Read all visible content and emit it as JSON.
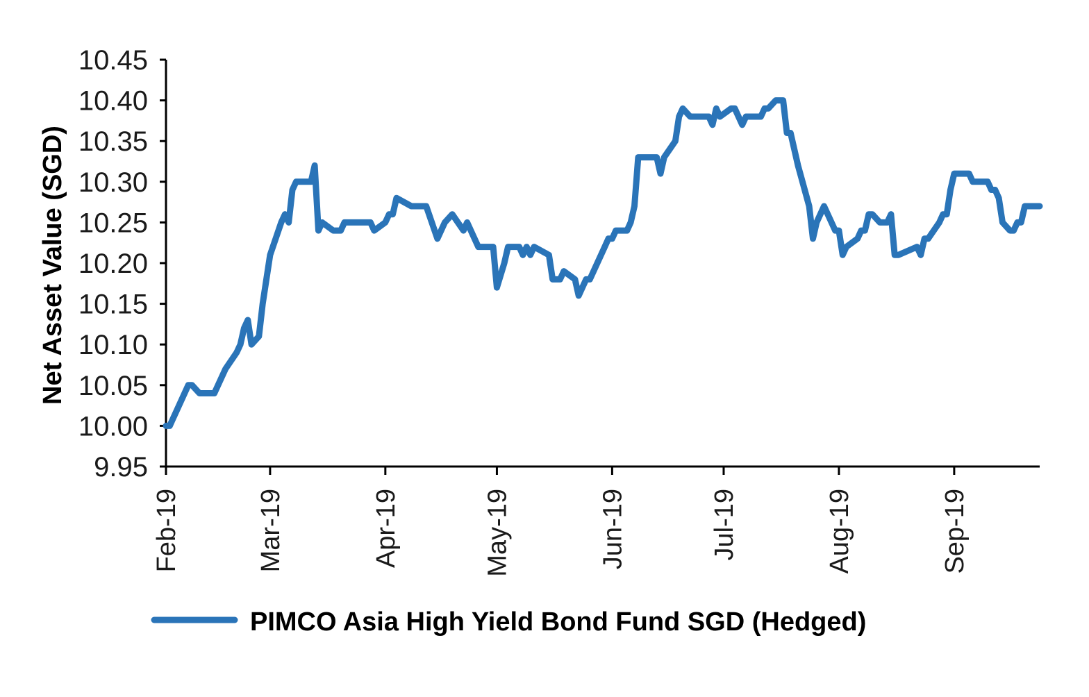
{
  "chart_data": {
    "type": "line",
    "ylabel": "Net Asset Value (SGD)",
    "ylim": [
      9.95,
      10.45
    ],
    "yticks": [
      "10.45",
      "10.40",
      "10.35",
      "10.30",
      "10.25",
      "10.20",
      "10.15",
      "10.10",
      "10.05",
      "10.00",
      "9.95"
    ],
    "xticks": [
      "Feb-19",
      "Mar-19",
      "Apr-19",
      "May-19",
      "Jun-19",
      "Jul-19",
      "Aug-19",
      "Sep-19"
    ],
    "xlim": [
      "2019-02-01",
      "2019-09-24"
    ],
    "grid": false,
    "legend_position": "bottom",
    "color": "#2a74b8",
    "series": [
      {
        "name": "PIMCO Asia High Yield Bond Fund SGD (Hedged)",
        "points": [
          [
            "2019-02-01",
            10.0
          ],
          [
            "2019-02-02",
            10.0
          ],
          [
            "2019-02-03",
            10.01
          ],
          [
            "2019-02-05",
            10.03
          ],
          [
            "2019-02-07",
            10.05
          ],
          [
            "2019-02-08",
            10.05
          ],
          [
            "2019-02-10",
            10.04
          ],
          [
            "2019-02-14",
            10.04
          ],
          [
            "2019-02-17",
            10.07
          ],
          [
            "2019-02-20",
            10.09
          ],
          [
            "2019-02-21",
            10.1
          ],
          [
            "2019-02-22",
            10.12
          ],
          [
            "2019-02-23",
            10.13
          ],
          [
            "2019-02-24",
            10.1
          ],
          [
            "2019-02-26",
            10.11
          ],
          [
            "2019-02-27",
            10.15
          ],
          [
            "2019-03-01",
            10.21
          ],
          [
            "2019-03-04",
            10.25
          ],
          [
            "2019-03-05",
            10.26
          ],
          [
            "2019-03-06",
            10.25
          ],
          [
            "2019-03-07",
            10.29
          ],
          [
            "2019-03-08",
            10.3
          ],
          [
            "2019-03-12",
            10.3
          ],
          [
            "2019-03-13",
            10.32
          ],
          [
            "2019-03-14",
            10.24
          ],
          [
            "2019-03-15",
            10.25
          ],
          [
            "2019-03-18",
            10.24
          ],
          [
            "2019-03-20",
            10.24
          ],
          [
            "2019-03-21",
            10.25
          ],
          [
            "2019-03-28",
            10.25
          ],
          [
            "2019-03-29",
            10.24
          ],
          [
            "2019-04-01",
            10.25
          ],
          [
            "2019-04-02",
            10.26
          ],
          [
            "2019-04-03",
            10.26
          ],
          [
            "2019-04-04",
            10.28
          ],
          [
            "2019-04-08",
            10.27
          ],
          [
            "2019-04-12",
            10.27
          ],
          [
            "2019-04-15",
            10.23
          ],
          [
            "2019-04-17",
            10.25
          ],
          [
            "2019-04-19",
            10.26
          ],
          [
            "2019-04-22",
            10.24
          ],
          [
            "2019-04-23",
            10.25
          ],
          [
            "2019-04-26",
            10.22
          ],
          [
            "2019-04-30",
            10.22
          ],
          [
            "2019-05-01",
            10.17
          ],
          [
            "2019-05-03",
            10.2
          ],
          [
            "2019-05-04",
            10.22
          ],
          [
            "2019-05-07",
            10.22
          ],
          [
            "2019-05-08",
            10.21
          ],
          [
            "2019-05-09",
            10.22
          ],
          [
            "2019-05-10",
            10.21
          ],
          [
            "2019-05-11",
            10.22
          ],
          [
            "2019-05-15",
            10.21
          ],
          [
            "2019-05-16",
            10.18
          ],
          [
            "2019-05-18",
            10.18
          ],
          [
            "2019-05-19",
            10.19
          ],
          [
            "2019-05-22",
            10.18
          ],
          [
            "2019-05-23",
            10.16
          ],
          [
            "2019-05-25",
            10.18
          ],
          [
            "2019-05-26",
            10.18
          ],
          [
            "2019-05-30",
            10.22
          ],
          [
            "2019-05-31",
            10.23
          ],
          [
            "2019-06-01",
            10.23
          ],
          [
            "2019-06-02",
            10.24
          ],
          [
            "2019-06-05",
            10.24
          ],
          [
            "2019-06-06",
            10.25
          ],
          [
            "2019-06-07",
            10.27
          ],
          [
            "2019-06-08",
            10.33
          ],
          [
            "2019-06-13",
            10.33
          ],
          [
            "2019-06-14",
            10.31
          ],
          [
            "2019-06-15",
            10.33
          ],
          [
            "2019-06-18",
            10.35
          ],
          [
            "2019-06-19",
            10.38
          ],
          [
            "2019-06-20",
            10.39
          ],
          [
            "2019-06-22",
            10.38
          ],
          [
            "2019-06-27",
            10.38
          ],
          [
            "2019-06-28",
            10.37
          ],
          [
            "2019-06-29",
            10.39
          ],
          [
            "2019-06-30",
            10.38
          ],
          [
            "2019-07-03",
            10.39
          ],
          [
            "2019-07-04",
            10.39
          ],
          [
            "2019-07-06",
            10.37
          ],
          [
            "2019-07-07",
            10.38
          ],
          [
            "2019-07-11",
            10.38
          ],
          [
            "2019-07-12",
            10.39
          ],
          [
            "2019-07-13",
            10.39
          ],
          [
            "2019-07-15",
            10.4
          ],
          [
            "2019-07-17",
            10.4
          ],
          [
            "2019-07-18",
            10.36
          ],
          [
            "2019-07-19",
            10.36
          ],
          [
            "2019-07-21",
            10.32
          ],
          [
            "2019-07-24",
            10.27
          ],
          [
            "2019-07-25",
            10.23
          ],
          [
            "2019-07-26",
            10.25
          ],
          [
            "2019-07-28",
            10.27
          ],
          [
            "2019-07-29",
            10.26
          ],
          [
            "2019-07-31",
            10.24
          ],
          [
            "2019-08-01",
            10.24
          ],
          [
            "2019-08-02",
            10.21
          ],
          [
            "2019-08-03",
            10.22
          ],
          [
            "2019-08-06",
            10.23
          ],
          [
            "2019-08-07",
            10.24
          ],
          [
            "2019-08-08",
            10.24
          ],
          [
            "2019-08-09",
            10.26
          ],
          [
            "2019-08-10",
            10.26
          ],
          [
            "2019-08-12",
            10.25
          ],
          [
            "2019-08-14",
            10.25
          ],
          [
            "2019-08-15",
            10.26
          ],
          [
            "2019-08-16",
            10.21
          ],
          [
            "2019-08-17",
            10.21
          ],
          [
            "2019-08-22",
            10.22
          ],
          [
            "2019-08-23",
            10.21
          ],
          [
            "2019-08-24",
            10.23
          ],
          [
            "2019-08-25",
            10.23
          ],
          [
            "2019-08-28",
            10.25
          ],
          [
            "2019-08-29",
            10.26
          ],
          [
            "2019-08-30",
            10.26
          ],
          [
            "2019-08-31",
            10.29
          ],
          [
            "2019-09-01",
            10.31
          ],
          [
            "2019-09-05",
            10.31
          ],
          [
            "2019-09-06",
            10.3
          ],
          [
            "2019-09-10",
            10.3
          ],
          [
            "2019-09-11",
            10.29
          ],
          [
            "2019-09-12",
            10.29
          ],
          [
            "2019-09-13",
            10.28
          ],
          [
            "2019-09-14",
            10.25
          ],
          [
            "2019-09-16",
            10.24
          ],
          [
            "2019-09-17",
            10.24
          ],
          [
            "2019-09-18",
            10.25
          ],
          [
            "2019-09-19",
            10.25
          ],
          [
            "2019-09-20",
            10.27
          ],
          [
            "2019-09-24",
            10.27
          ]
        ]
      }
    ]
  }
}
